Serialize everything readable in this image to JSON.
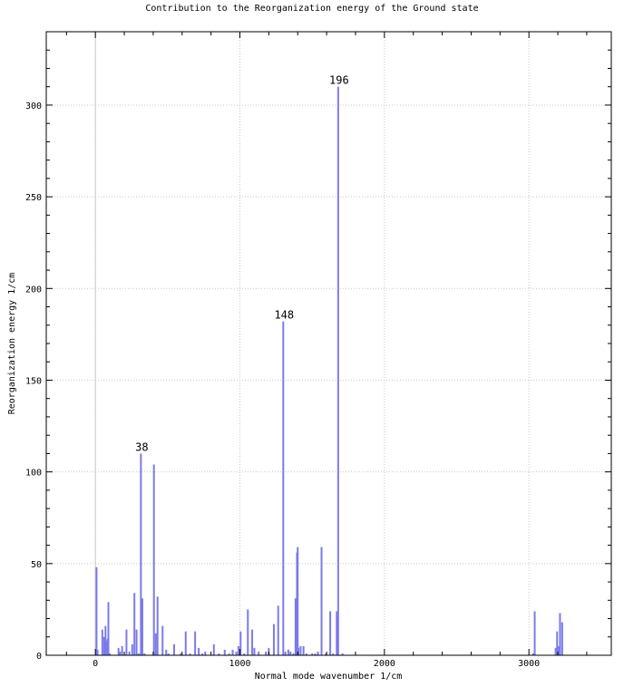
{
  "chart_data": {
    "type": "bar",
    "title": "Contribution to the Reorganization energy of the Ground state",
    "xlabel": "Normal mode wavenumber 1/cm",
    "ylabel": "Reorganization energy 1/cm",
    "xlim": [
      -340,
      3570
    ],
    "ylim": [
      0,
      340
    ],
    "x_ticks": [
      0,
      1000,
      2000,
      3000
    ],
    "y_ticks": [
      0,
      50,
      100,
      150,
      200,
      250,
      300
    ],
    "x_tick_labels": [
      "0",
      "1000",
      "2000",
      "3000"
    ],
    "y_tick_labels": [
      "0",
      "50",
      "100",
      "150",
      "200",
      "250",
      "300"
    ],
    "grid": true,
    "bar_color": "#7b7beb",
    "series": [
      {
        "x": [
          8,
          15,
          48,
          60,
          70,
          75,
          85,
          90,
          100,
          160,
          170,
          185,
          215,
          235,
          255,
          270,
          285,
          300,
          315,
          325,
          340,
          405,
          418,
          430,
          465,
          490,
          505,
          545,
          590,
          625,
          655,
          690,
          715,
          740,
          760,
          820,
          855,
          895,
          925,
          950,
          975,
          990,
          1005,
          1030,
          1055,
          1085,
          1100,
          1130,
          1180,
          1200,
          1235,
          1265,
          1300,
          1315,
          1335,
          1350,
          1370,
          1385,
          1395,
          1400,
          1405,
          1420,
          1440,
          1460,
          1500,
          1520,
          1540,
          1565,
          1595,
          1625,
          1645,
          1670,
          1680,
          1710,
          3030,
          3040,
          3185,
          3195,
          3205,
          3215,
          3230
        ],
        "values": [
          48,
          3,
          14,
          10,
          16,
          8,
          9,
          29,
          1,
          4,
          2,
          5,
          14,
          2,
          6,
          34,
          14,
          1,
          110,
          31,
          1,
          104,
          12,
          32,
          16,
          3,
          1,
          6,
          1,
          13,
          1,
          13,
          4,
          1,
          2,
          6,
          1,
          3,
          1,
          3,
          2,
          5,
          13,
          1,
          25,
          14,
          4,
          2,
          2,
          4,
          17,
          27,
          182,
          2,
          3,
          2,
          1,
          31,
          56,
          59,
          4,
          5,
          5,
          1,
          1,
          1,
          2,
          59,
          1,
          24,
          1,
          24,
          310,
          1,
          1,
          24,
          4,
          13,
          5,
          23,
          18
        ]
      }
    ],
    "annotations": [
      {
        "label": "38",
        "x": 315,
        "y": 110
      },
      {
        "label": "148",
        "x": 1300,
        "y": 182
      },
      {
        "label": "196",
        "x": 1680,
        "y": 310
      }
    ]
  }
}
